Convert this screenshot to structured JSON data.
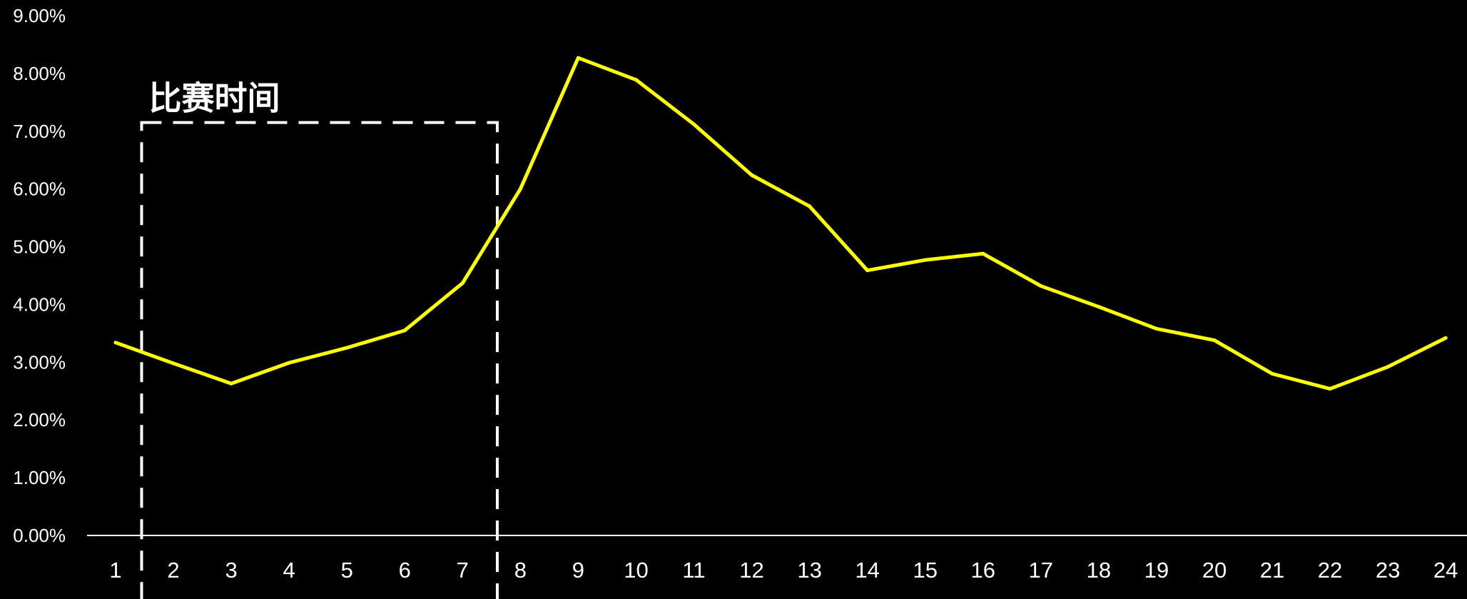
{
  "chart_data": {
    "type": "line",
    "title": "",
    "xlabel": "",
    "ylabel": "",
    "categories": [
      "1",
      "2",
      "3",
      "4",
      "5",
      "6",
      "7",
      "8",
      "9",
      "10",
      "11",
      "12",
      "13",
      "14",
      "15",
      "16",
      "17",
      "18",
      "19",
      "20",
      "21",
      "22",
      "23",
      "24"
    ],
    "series": [
      {
        "values": [
          3.34,
          2.98,
          2.63,
          2.99,
          3.25,
          3.55,
          4.37,
          6.0,
          8.27,
          7.89,
          7.12,
          6.24,
          5.7,
          4.59,
          4.77,
          4.88,
          4.32,
          3.96,
          3.58,
          3.38,
          2.8,
          2.54,
          2.92,
          3.42
        ]
      }
    ],
    "ylim": [
      0,
      9
    ],
    "y_ticks": [
      "0.00%",
      "1.00%",
      "2.00%",
      "3.00%",
      "4.00%",
      "5.00%",
      "6.00%",
      "7.00%",
      "8.00%",
      "9.00%"
    ],
    "grid": false,
    "legend": "none",
    "annotation": {
      "label": "比赛时间",
      "x_start": 1.45,
      "x_end": 7.6,
      "y_top": 7.15
    },
    "colors": {
      "background": "#000000",
      "line": "#ffff00",
      "axis": "#ffffff",
      "text": "#ffffff",
      "annotation_box": "#ffffff"
    }
  }
}
